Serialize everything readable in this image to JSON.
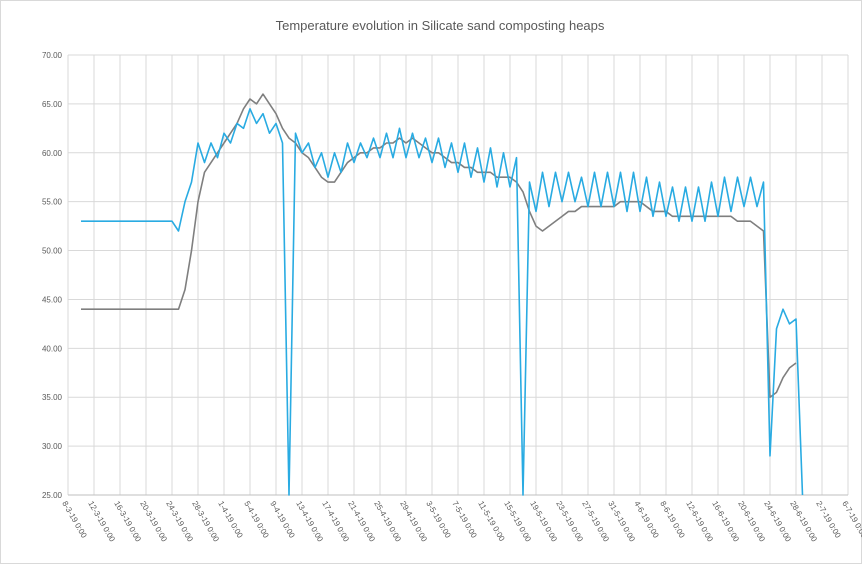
{
  "chart_data": {
    "type": "line",
    "title": "Temperature evolution in Silicate sand composting heaps",
    "grid": true,
    "x": [
      "10-3-19 0:00",
      "11-3-19 0:00",
      "12-3-19 0:00",
      "13-3-19 0:00",
      "14-3-19 0:00",
      "15-3-19 0:00",
      "16-3-19 0:00",
      "17-3-19 0:00",
      "18-3-19 0:00",
      "19-3-19 0:00",
      "20-3-19 0:00",
      "21-3-19 0:00",
      "22-3-19 0:00",
      "23-3-19 0:00",
      "24-3-19 0:00",
      "25-3-19 0:00",
      "26-3-19 0:00",
      "27-3-19 0:00",
      "28-3-19 0:00",
      "29-3-19 0:00",
      "30-3-19 0:00",
      "31-3-19 0:00",
      "1-4-19 0:00",
      "2-4-19 0:00",
      "3-4-19 0:00",
      "4-4-19 0:00",
      "5-4-19 0:00",
      "6-4-19 0:00",
      "7-4-19 0:00",
      "8-4-19 0:00",
      "9-4-19 0:00",
      "10-4-19 0:00",
      "11-4-19 0:00",
      "12-4-19 0:00",
      "13-4-19 0:00",
      "14-4-19 0:00",
      "15-4-19 0:00",
      "16-4-19 0:00",
      "17-4-19 0:00",
      "18-4-19 0:00",
      "19-4-19 0:00",
      "20-4-19 0:00",
      "21-4-19 0:00",
      "22-4-19 0:00",
      "23-4-19 0:00",
      "24-4-19 0:00",
      "25-4-19 0:00",
      "26-4-19 0:00",
      "27-4-19 0:00",
      "28-4-19 0:00",
      "29-4-19 0:00",
      "30-4-19 0:00",
      "1-5-19 0:00",
      "2-5-19 0:00",
      "3-5-19 0:00",
      "4-5-19 0:00",
      "5-5-19 0:00",
      "6-5-19 0:00",
      "7-5-19 0:00",
      "8-5-19 0:00",
      "9-5-19 0:00",
      "10-5-19 0:00",
      "11-5-19 0:00",
      "12-5-19 0:00",
      "13-5-19 0:00",
      "14-5-19 0:00",
      "15-5-19 0:00",
      "16-5-19 0:00",
      "17-5-19 0:00",
      "18-5-19 0:00",
      "19-5-19 0:00",
      "20-5-19 0:00",
      "21-5-19 0:00",
      "22-5-19 0:00",
      "23-5-19 0:00",
      "24-5-19 0:00",
      "25-5-19 0:00",
      "26-5-19 0:00",
      "27-5-19 0:00",
      "28-5-19 0:00",
      "29-5-19 0:00",
      "30-5-19 0:00",
      "31-5-19 0:00",
      "1-6-19 0:00",
      "2-6-19 0:00",
      "3-6-19 0:00",
      "4-6-19 0:00",
      "5-6-19 0:00",
      "6-6-19 0:00",
      "7-6-19 0:00",
      "8-6-19 0:00",
      "9-6-19 0:00",
      "10-6-19 0:00",
      "11-6-19 0:00",
      "12-6-19 0:00",
      "13-6-19 0:00",
      "14-6-19 0:00",
      "15-6-19 0:00",
      "16-6-19 0:00",
      "17-6-19 0:00",
      "18-6-19 0:00",
      "19-6-19 0:00",
      "20-6-19 0:00",
      "21-6-19 0:00",
      "22-6-19 0:00",
      "23-6-19 0:00",
      "24-6-19 0:00",
      "25-6-19 0:00",
      "26-6-19 0:00",
      "27-6-19 0:00",
      "28-6-19 0:00",
      "29-6-19 0:00"
    ],
    "series": [
      {
        "color": "#7f7f7f",
        "values": [
          44,
          44,
          44,
          44,
          44,
          44,
          44,
          44,
          44,
          44,
          44,
          44,
          44,
          44,
          44,
          44,
          46,
          50,
          55,
          58,
          59,
          60,
          61,
          62,
          63,
          64.5,
          65.5,
          65,
          66,
          65,
          64,
          62.5,
          61.5,
          61,
          60,
          59.5,
          58.5,
          57.5,
          57,
          57,
          58,
          59,
          59.5,
          60,
          60,
          60.5,
          60.5,
          61,
          61,
          61.5,
          61,
          61.5,
          61,
          60.5,
          60,
          60,
          59.5,
          59,
          59,
          58.5,
          58.5,
          58,
          58,
          58,
          57.5,
          57.5,
          57.5,
          57,
          56,
          54,
          52.5,
          52,
          52.5,
          53,
          53.5,
          54,
          54,
          54.5,
          54.5,
          54.5,
          54.5,
          54.5,
          54.5,
          55,
          55,
          55,
          55,
          54.5,
          54,
          54,
          54,
          53.5,
          53.5,
          53.5,
          53.5,
          53.5,
          53.5,
          53.5,
          53.5,
          53.5,
          53.5,
          53,
          53,
          53,
          52.5,
          52,
          35,
          35.5,
          37,
          38,
          38.5,
          null
        ]
      },
      {
        "color": "#29abe2",
        "values": [
          53,
          53,
          53,
          53,
          53,
          53,
          53,
          53,
          53,
          53,
          53,
          53,
          53,
          53,
          53,
          52,
          55,
          57,
          61,
          59,
          61,
          59.5,
          62,
          61,
          63,
          62.5,
          64.5,
          63,
          64,
          62,
          63,
          61,
          25,
          62,
          60,
          61,
          58.5,
          60,
          57.5,
          60,
          58,
          61,
          59,
          61,
          59.5,
          61.5,
          59.5,
          62,
          59.5,
          62.5,
          59.5,
          62,
          59.5,
          61.5,
          59,
          61.5,
          58.5,
          61,
          58,
          61,
          57.5,
          60.5,
          57,
          60.5,
          56.5,
          60,
          56.5,
          59.5,
          25,
          57,
          54,
          58,
          54.5,
          58,
          55,
          58,
          55,
          57.5,
          54.5,
          58,
          54.5,
          58,
          54.5,
          58,
          54,
          58,
          54,
          57.5,
          53.5,
          57,
          53.5,
          56.5,
          53,
          56.5,
          53,
          56.5,
          53,
          57,
          53.5,
          57.5,
          54,
          57.5,
          54.5,
          57.5,
          54.5,
          57,
          29,
          42,
          44,
          42.5,
          43,
          25
        ]
      }
    ],
    "xlim": [
      "8-3-19 0:00",
      "6-7-19 0:00"
    ],
    "xticks": [
      "8-3-19 0:00",
      "12-3-19 0:00",
      "16-3-19 0:00",
      "20-3-19 0:00",
      "24-3-19 0:00",
      "28-3-19 0:00",
      "1-4-19 0:00",
      "5-4-19 0:00",
      "9-4-19 0:00",
      "13-4-19 0:00",
      "17-4-19 0:00",
      "21-4-19 0:00",
      "25-4-19 0:00",
      "29-4-19 0:00",
      "3-5-19 0:00",
      "7-5-19 0:00",
      "11-5-19 0:00",
      "15-5-19 0:00",
      "19-5-19 0:00",
      "23-5-19 0:00",
      "27-5-19 0:00",
      "31-5-19 0:00",
      "4-6-19 0:00",
      "8-6-19 0:00",
      "12-6-19 0:00",
      "16-6-19 0:00",
      "20-6-19 0:00",
      "24-6-19 0:00",
      "28-6-19 0:00",
      "2-7-19 0:00",
      "6-7-19 0:00"
    ],
    "ylim": [
      25,
      70
    ],
    "yticks": [
      {
        "value": 25,
        "label": "25.00"
      },
      {
        "value": 30,
        "label": "30.00"
      },
      {
        "value": 35,
        "label": "35.00"
      },
      {
        "value": 40,
        "label": "40.00"
      },
      {
        "value": 45,
        "label": "45.00"
      },
      {
        "value": 50,
        "label": "50.00"
      },
      {
        "value": 55,
        "label": "55.00"
      },
      {
        "value": 60,
        "label": "60.00"
      },
      {
        "value": 65,
        "label": "65.00"
      },
      {
        "value": 70,
        "label": "70.00"
      }
    ]
  }
}
